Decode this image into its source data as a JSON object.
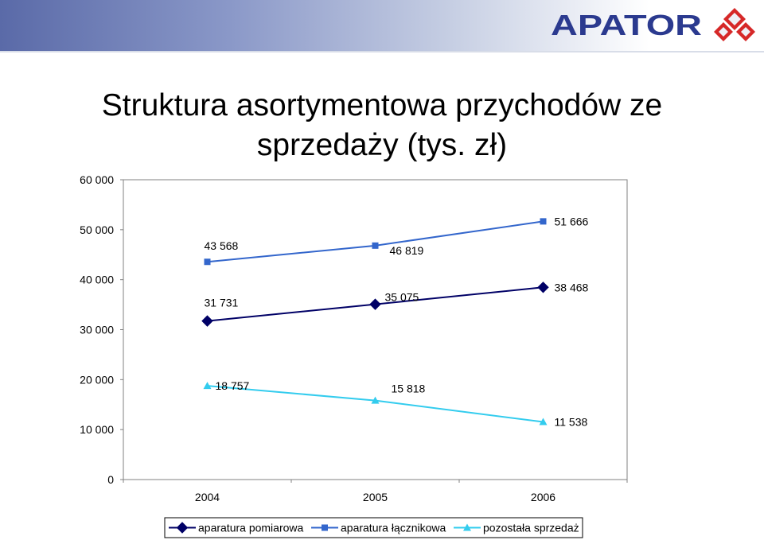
{
  "header": {
    "brand": "APATOR",
    "colors": {
      "brand_blue": "#2b3a8f",
      "brand_red": "#d62828",
      "band_left": "#5a6aa8"
    }
  },
  "title": {
    "line1": "Struktura asortymentowa przychodów ze",
    "line2": "sprzedaży (tys. zł)"
  },
  "chart_data": {
    "type": "line",
    "title": "Struktura asortymentowa przychodów ze sprzedaży (tys. zł)",
    "categories": [
      "2004",
      "2005",
      "2006"
    ],
    "ylim": [
      0,
      60000
    ],
    "yticks": [
      0,
      10000,
      20000,
      30000,
      40000,
      50000,
      60000
    ],
    "ytick_labels": [
      "0",
      "10 000",
      "20 000",
      "30 000",
      "40 000",
      "50 000",
      "60 000"
    ],
    "grid": false,
    "legend_position": "bottom",
    "series": [
      {
        "name": "aparatura pomiarowa",
        "values": [
          31731,
          35075,
          38468
        ],
        "labels": [
          "31 731",
          "35 075",
          "38 468"
        ],
        "color": "#000066",
        "marker": "diamond"
      },
      {
        "name": "aparatura łącznikowa",
        "values": [
          43568,
          46819,
          51666
        ],
        "labels": [
          "43 568",
          "46 819",
          "51 666"
        ],
        "color": "#3366cc",
        "marker": "square"
      },
      {
        "name": "pozostała sprzedaż",
        "values": [
          18757,
          15818,
          11538
        ],
        "labels": [
          "18 757",
          "15 818",
          "11 538"
        ],
        "color": "#33ccee",
        "marker": "triangle"
      }
    ]
  }
}
